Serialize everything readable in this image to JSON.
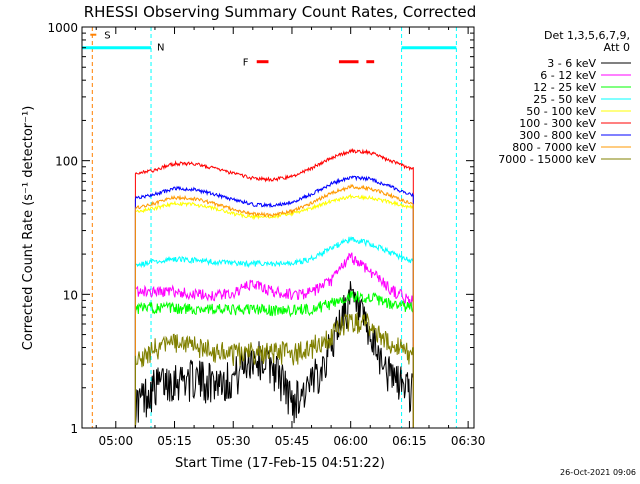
{
  "chart_data": {
    "type": "line",
    "title": "RHESSI Observing Summary Count Rates, Corrected",
    "xlabel": "Start Time (17-Feb-15 04:51:22)",
    "ylabel": "Corrected Count Rate (s⁻¹ detector⁻¹)",
    "xlim": [
      "04:51:22",
      "06:31:30"
    ],
    "ylim": [
      1,
      1000
    ],
    "yscale": "log",
    "x_ticks": [
      "05:00",
      "05:15",
      "05:30",
      "05:45",
      "06:00",
      "06:15",
      "06:30"
    ],
    "y_ticks": [
      "1",
      "10",
      "100",
      "1000"
    ],
    "legend_header": [
      "Det 1,3,5,6,7,9,",
      "Att 0"
    ],
    "legend_position": "right",
    "footer": "26-Oct-2021 09:06",
    "annotations": {
      "S": {
        "label": "S",
        "time": "04:54",
        "color": "#ff8000"
      },
      "N": {
        "label": "N",
        "time": "05:09",
        "color": "#00ffff"
      },
      "F": {
        "label": "F",
        "segments": [
          [
            "05:36",
            "05:39"
          ],
          [
            "05:57",
            "06:02"
          ],
          [
            "06:04",
            "06:06"
          ]
        ],
        "color": "#ff0000"
      },
      "night_segments": [
        [
          "04:51:22",
          "05:09"
        ],
        [
          "06:13",
          "06:27"
        ]
      ],
      "night_level": 700,
      "vlines": [
        {
          "time": "04:54",
          "color": "#ff8000"
        },
        {
          "time": "05:09",
          "color": "#00ffff"
        },
        {
          "time": "06:13",
          "color": "#00ffff"
        },
        {
          "time": "06:27",
          "color": "#00ffff"
        }
      ]
    },
    "data_window": [
      "05:05",
      "06:16"
    ],
    "series": [
      {
        "name": "3 - 6 keV",
        "color": "#000000",
        "x": [
          "05:05",
          "05:10",
          "05:15",
          "05:20",
          "05:25",
          "05:30",
          "05:35",
          "05:40",
          "05:45",
          "05:50",
          "05:55",
          "06:00",
          "06:05",
          "06:10",
          "06:15"
        ],
        "y": [
          1.5,
          2.1,
          2.4,
          2.4,
          2.3,
          2.4,
          3.5,
          3.0,
          1.6,
          2.1,
          4.0,
          9.5,
          4.5,
          2.5,
          2.0
        ]
      },
      {
        "name": "6 - 12 keV",
        "color": "#ff00ff",
        "x": [
          "05:05",
          "05:10",
          "05:15",
          "05:20",
          "05:25",
          "05:30",
          "05:35",
          "05:40",
          "05:45",
          "05:50",
          "05:55",
          "06:00",
          "06:05",
          "06:10",
          "06:15"
        ],
        "y": [
          10.5,
          10.5,
          10.5,
          10.0,
          9.8,
          10.2,
          12.0,
          10.5,
          10.0,
          10.3,
          12.5,
          19.0,
          15.0,
          11.0,
          9.0
        ]
      },
      {
        "name": "12 - 25 keV",
        "color": "#00ff00",
        "x": [
          "05:05",
          "05:10",
          "05:15",
          "05:20",
          "05:25",
          "05:30",
          "05:35",
          "05:40",
          "05:45",
          "05:50",
          "05:55",
          "06:00",
          "06:05",
          "06:10",
          "06:15"
        ],
        "y": [
          7.8,
          8.0,
          7.8,
          7.8,
          7.8,
          7.6,
          7.8,
          7.6,
          7.6,
          7.8,
          8.5,
          9.8,
          9.5,
          8.5,
          8.0
        ]
      },
      {
        "name": "25 - 50 keV",
        "color": "#00ffff",
        "x": [
          "05:05",
          "05:10",
          "05:15",
          "05:20",
          "05:25",
          "05:30",
          "05:35",
          "05:40",
          "05:45",
          "05:50",
          "05:55",
          "06:00",
          "06:05",
          "06:10",
          "06:15"
        ],
        "y": [
          16.5,
          17.5,
          18.5,
          18.0,
          17.5,
          17.0,
          17.0,
          16.8,
          17.0,
          18.5,
          22.0,
          26.0,
          24.0,
          20.5,
          18.0
        ]
      },
      {
        "name": "50 - 100 keV",
        "color": "#ffff00",
        "x": [
          "05:05",
          "05:10",
          "05:15",
          "05:20",
          "05:25",
          "05:30",
          "05:35",
          "05:40",
          "05:45",
          "05:50",
          "05:55",
          "06:00",
          "06:05",
          "06:10",
          "06:15"
        ],
        "y": [
          41,
          44,
          48,
          47,
          44,
          40,
          38,
          38,
          40,
          44,
          50,
          54,
          53,
          49,
          45
        ]
      },
      {
        "name": "100 - 300 keV",
        "color": "#ff0000",
        "x": [
          "05:05",
          "05:10",
          "05:15",
          "05:20",
          "05:25",
          "05:30",
          "05:35",
          "05:40",
          "05:45",
          "05:50",
          "05:55",
          "06:00",
          "06:05",
          "06:10",
          "06:15"
        ],
        "y": [
          80,
          85,
          95,
          95,
          88,
          80,
          74,
          72,
          76,
          88,
          105,
          118,
          115,
          100,
          88
        ]
      },
      {
        "name": "300 - 800 keV",
        "color": "#0000ff",
        "x": [
          "05:05",
          "05:10",
          "05:15",
          "05:20",
          "05:25",
          "05:30",
          "05:35",
          "05:40",
          "05:45",
          "05:50",
          "05:55",
          "06:00",
          "06:05",
          "06:10",
          "06:15"
        ],
        "y": [
          52,
          56,
          62,
          61,
          56,
          51,
          47,
          46,
          49,
          56,
          67,
          75,
          73,
          64,
          56
        ]
      },
      {
        "name": "800 - 7000 keV",
        "color": "#ff9900",
        "x": [
          "05:05",
          "05:10",
          "05:15",
          "05:20",
          "05:25",
          "05:30",
          "05:35",
          "05:40",
          "05:45",
          "05:50",
          "05:55",
          "06:00",
          "06:05",
          "06:10",
          "06:15"
        ],
        "y": [
          44,
          48,
          53,
          52,
          48,
          43,
          40,
          39,
          42,
          48,
          57,
          64,
          62,
          55,
          48
        ]
      },
      {
        "name": "7000 - 15000 keV",
        "color": "#808000",
        "x": [
          "05:05",
          "05:10",
          "05:15",
          "05:20",
          "05:25",
          "05:30",
          "05:35",
          "05:40",
          "05:45",
          "05:50",
          "05:55",
          "06:00",
          "06:05",
          "06:10",
          "06:15"
        ],
        "y": [
          3.0,
          4.0,
          4.3,
          4.2,
          3.8,
          3.6,
          3.7,
          3.8,
          3.6,
          4.0,
          5.0,
          6.5,
          6.0,
          4.5,
          3.5
        ]
      }
    ]
  }
}
